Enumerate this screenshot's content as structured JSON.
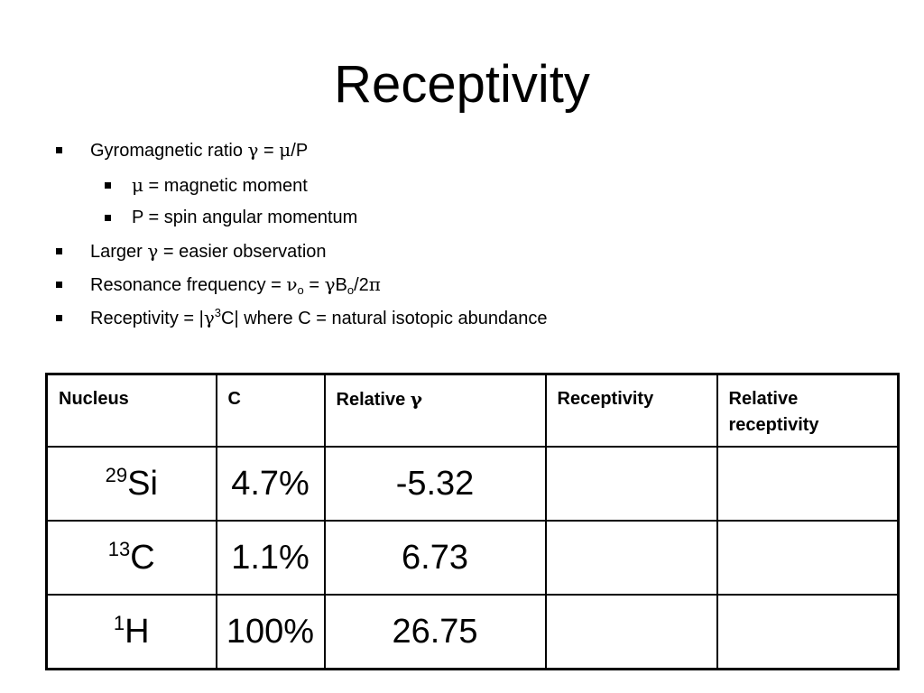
{
  "slide": {
    "title": "Receptivity"
  },
  "bullets": {
    "b1": {
      "pre": "Gyromagnetic ratio ",
      "gamma": "γ",
      "mid": " = ",
      "mu": "μ",
      "post": "/P"
    },
    "b2": {
      "mu": "μ",
      "post": " = magnetic moment"
    },
    "b3": {
      "text": "P = spin angular momentum"
    },
    "b4": {
      "pre": "Larger ",
      "gamma": "γ",
      "post": " = easier observation"
    },
    "b5": {
      "pre": "Resonance frequency = ",
      "nu": "ν",
      "nu_sub": "o",
      "mid": " = ",
      "gamma": "γ",
      "b": "B",
      "b_sub": "o",
      "post_a": "/2",
      "pi": "π"
    },
    "b6": {
      "pre": "Receptivity = |",
      "gamma": "γ",
      "sup": "3",
      "post": "C| where C = natural isotopic abundance"
    }
  },
  "table": {
    "headers": {
      "nucleus": "Nucleus",
      "c": "C",
      "relative_gamma_pre": "Relative ",
      "relative_gamma_symbol": "γ",
      "receptivity": "Receptivity",
      "relative_receptivity_line1": "Relative",
      "relative_receptivity_line2": "receptivity"
    },
    "rows": [
      {
        "mass": "29",
        "element": "Si",
        "c": "4.7%",
        "relative_gamma": "-5.32",
        "receptivity": "",
        "relative_receptivity": ""
      },
      {
        "mass": "13",
        "element": "C",
        "c": "1.1%",
        "relative_gamma": "6.73",
        "receptivity": "",
        "relative_receptivity": ""
      },
      {
        "mass": "1",
        "element": "H",
        "c": "100%",
        "relative_gamma": "26.75",
        "receptivity": "",
        "relative_receptivity": ""
      }
    ]
  }
}
